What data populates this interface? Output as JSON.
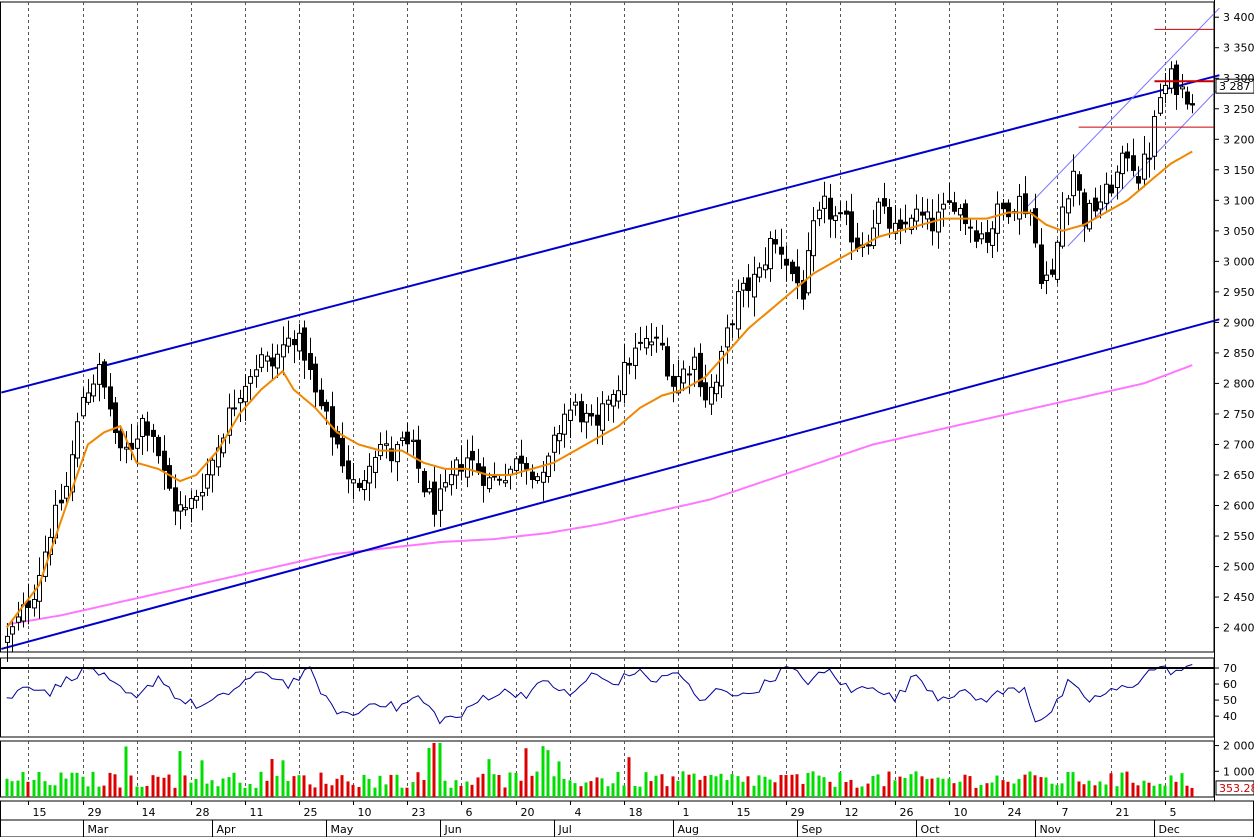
{
  "chart_data": {
    "type": "candlestick",
    "price_axis": {
      "ylim": [
        2360,
        3420
      ],
      "ticks": [
        "3 400",
        "3 350",
        "3 300",
        "3 250",
        "3 200",
        "3 150",
        "3 100",
        "3 050",
        "3 000",
        "2 950",
        "2 900",
        "2 850",
        "2 800",
        "2 750",
        "2 700",
        "2 650",
        "2 600",
        "2 550",
        "2 500",
        "2 450",
        "2 400"
      ],
      "tick_values": [
        3400,
        3350,
        3300,
        3250,
        3200,
        3150,
        3100,
        3050,
        3000,
        2950,
        2900,
        2850,
        2800,
        2750,
        2700,
        2650,
        2600,
        2550,
        2500,
        2450,
        2400
      ],
      "last_price_label": "3 287",
      "last_price": 3287
    },
    "oscillator_axis": {
      "ylim": [
        27,
        75
      ],
      "ticks": [
        "70",
        "60",
        "50",
        "40"
      ],
      "tick_values": [
        70,
        60,
        50,
        40
      ],
      "reference_level": 70
    },
    "volume_axis": {
      "ylim": [
        0,
        2100
      ],
      "ticks": [
        "2 000",
        "1 000"
      ],
      "tick_values": [
        2000,
        1000
      ],
      "last_volume_label": "353.28",
      "last_volume": 353.28
    },
    "x_axis": {
      "n_bars": 224,
      "day_ticks": [
        {
          "label": "15",
          "bar": 4
        },
        {
          "label": "29",
          "bar": 14
        },
        {
          "label": "14",
          "bar": 24
        },
        {
          "label": "28",
          "bar": 34
        },
        {
          "label": "11",
          "bar": 44
        },
        {
          "label": "25",
          "bar": 54
        },
        {
          "label": "10",
          "bar": 64
        },
        {
          "label": "23",
          "bar": 74
        },
        {
          "label": "6",
          "bar": 84
        },
        {
          "label": "20",
          "bar": 94
        },
        {
          "label": "4",
          "bar": 104
        },
        {
          "label": "18",
          "bar": 114
        },
        {
          "label": "1",
          "bar": 124
        },
        {
          "label": "15",
          "bar": 134
        },
        {
          "label": "29",
          "bar": 144
        },
        {
          "label": "12",
          "bar": 154
        },
        {
          "label": "26",
          "bar": 164
        },
        {
          "label": "10",
          "bar": 174
        },
        {
          "label": "24",
          "bar": 184
        },
        {
          "label": "7",
          "bar": 194
        },
        {
          "label": "21",
          "bar": 204
        },
        {
          "label": "5",
          "bar": 214
        }
      ],
      "months": [
        {
          "label": "Mar",
          "bar": 14
        },
        {
          "label": "Apr",
          "bar": 38
        },
        {
          "label": "May",
          "bar": 59
        },
        {
          "label": "Jun",
          "bar": 80
        },
        {
          "label": "Jul",
          "bar": 101
        },
        {
          "label": "Aug",
          "bar": 123
        },
        {
          "label": "Sep",
          "bar": 146
        },
        {
          "label": "Oct",
          "bar": 168
        },
        {
          "label": "Nov",
          "bar": 190
        },
        {
          "label": "Dec",
          "bar": 212
        }
      ]
    },
    "price_keypoints": [
      [
        0,
        2380
      ],
      [
        2,
        2410
      ],
      [
        5,
        2460
      ],
      [
        8,
        2560
      ],
      [
        11,
        2630
      ],
      [
        14,
        2780
      ],
      [
        17,
        2820
      ],
      [
        19,
        2760
      ],
      [
        21,
        2680
      ],
      [
        23,
        2700
      ],
      [
        25,
        2740
      ],
      [
        27,
        2720
      ],
      [
        29,
        2650
      ],
      [
        31,
        2600
      ],
      [
        33,
        2590
      ],
      [
        35,
        2620
      ],
      [
        37,
        2650
      ],
      [
        39,
        2700
      ],
      [
        41,
        2750
      ],
      [
        43,
        2790
      ],
      [
        45,
        2820
      ],
      [
        47,
        2840
      ],
      [
        49,
        2830
      ],
      [
        51,
        2860
      ],
      [
        53,
        2880
      ],
      [
        55,
        2850
      ],
      [
        57,
        2780
      ],
      [
        59,
        2740
      ],
      [
        61,
        2700
      ],
      [
        63,
        2650
      ],
      [
        65,
        2620
      ],
      [
        67,
        2680
      ],
      [
        69,
        2700
      ],
      [
        71,
        2680
      ],
      [
        73,
        2700
      ],
      [
        75,
        2690
      ],
      [
        77,
        2630
      ],
      [
        79,
        2600
      ],
      [
        81,
        2620
      ],
      [
        83,
        2660
      ],
      [
        85,
        2680
      ],
      [
        87,
        2660
      ],
      [
        89,
        2640
      ],
      [
        91,
        2650
      ],
      [
        93,
        2660
      ],
      [
        95,
        2680
      ],
      [
        97,
        2660
      ],
      [
        99,
        2640
      ],
      [
        101,
        2700
      ],
      [
        103,
        2750
      ],
      [
        105,
        2760
      ],
      [
        107,
        2740
      ],
      [
        109,
        2720
      ],
      [
        111,
        2780
      ],
      [
        113,
        2800
      ],
      [
        115,
        2840
      ],
      [
        117,
        2860
      ],
      [
        119,
        2870
      ],
      [
        121,
        2860
      ],
      [
        123,
        2800
      ],
      [
        125,
        2820
      ],
      [
        127,
        2840
      ],
      [
        129,
        2780
      ],
      [
        131,
        2800
      ],
      [
        133,
        2880
      ],
      [
        135,
        2940
      ],
      [
        137,
        2960
      ],
      [
        139,
        2980
      ],
      [
        141,
        3030
      ],
      [
        143,
        3020
      ],
      [
        145,
        2980
      ],
      [
        147,
        2950
      ],
      [
        149,
        3050
      ],
      [
        151,
        3090
      ],
      [
        153,
        3070
      ],
      [
        155,
        3060
      ],
      [
        157,
        3030
      ],
      [
        159,
        3040
      ],
      [
        161,
        3090
      ],
      [
        163,
        3060
      ],
      [
        165,
        3040
      ],
      [
        167,
        3080
      ],
      [
        169,
        3070
      ],
      [
        171,
        3060
      ],
      [
        173,
        3080
      ],
      [
        175,
        3100
      ],
      [
        177,
        3070
      ],
      [
        179,
        3050
      ],
      [
        181,
        3040
      ],
      [
        183,
        3080
      ],
      [
        185,
        3090
      ],
      [
        187,
        3100
      ],
      [
        189,
        3080
      ],
      [
        191,
        2980
      ],
      [
        193,
        2970
      ],
      [
        195,
        3090
      ],
      [
        197,
        3150
      ],
      [
        199,
        3070
      ],
      [
        201,
        3090
      ],
      [
        203,
        3110
      ],
      [
        205,
        3140
      ],
      [
        207,
        3180
      ],
      [
        209,
        3140
      ],
      [
        211,
        3180
      ],
      [
        213,
        3270
      ],
      [
        215,
        3300
      ],
      [
        217,
        3280
      ],
      [
        219,
        3270
      ]
    ],
    "ema_keypoints": [
      [
        0,
        2400
      ],
      [
        6,
        2470
      ],
      [
        11,
        2600
      ],
      [
        15,
        2700
      ],
      [
        18,
        2720
      ],
      [
        21,
        2730
      ],
      [
        24,
        2670
      ],
      [
        28,
        2660
      ],
      [
        32,
        2640
      ],
      [
        35,
        2650
      ],
      [
        39,
        2690
      ],
      [
        43,
        2750
      ],
      [
        47,
        2790
      ],
      [
        51,
        2820
      ],
      [
        53,
        2790
      ],
      [
        57,
        2760
      ],
      [
        61,
        2720
      ],
      [
        65,
        2700
      ],
      [
        69,
        2690
      ],
      [
        73,
        2690
      ],
      [
        77,
        2670
      ],
      [
        81,
        2660
      ],
      [
        85,
        2660
      ],
      [
        89,
        2650
      ],
      [
        93,
        2650
      ],
      [
        97,
        2660
      ],
      [
        101,
        2670
      ],
      [
        105,
        2690
      ],
      [
        109,
        2710
      ],
      [
        113,
        2730
      ],
      [
        117,
        2760
      ],
      [
        121,
        2780
      ],
      [
        125,
        2790
      ],
      [
        129,
        2810
      ],
      [
        133,
        2850
      ],
      [
        137,
        2890
      ],
      [
        141,
        2920
      ],
      [
        145,
        2950
      ],
      [
        149,
        2980
      ],
      [
        153,
        3000
      ],
      [
        157,
        3020
      ],
      [
        161,
        3040
      ],
      [
        165,
        3050
      ],
      [
        169,
        3060
      ],
      [
        173,
        3070
      ],
      [
        177,
        3070
      ],
      [
        181,
        3070
      ],
      [
        185,
        3080
      ],
      [
        189,
        3080
      ],
      [
        192,
        3060
      ],
      [
        195,
        3050
      ],
      [
        199,
        3060
      ],
      [
        203,
        3080
      ],
      [
        207,
        3100
      ],
      [
        211,
        3130
      ],
      [
        215,
        3160
      ],
      [
        219,
        3180
      ]
    ],
    "sma_keypoints": [
      [
        0,
        2405
      ],
      [
        10,
        2420
      ],
      [
        20,
        2440
      ],
      [
        30,
        2460
      ],
      [
        40,
        2480
      ],
      [
        50,
        2500
      ],
      [
        60,
        2520
      ],
      [
        70,
        2530
      ],
      [
        80,
        2540
      ],
      [
        90,
        2545
      ],
      [
        100,
        2555
      ],
      [
        110,
        2570
      ],
      [
        120,
        2590
      ],
      [
        130,
        2610
      ],
      [
        140,
        2640
      ],
      [
        150,
        2670
      ],
      [
        160,
        2700
      ],
      [
        170,
        2720
      ],
      [
        180,
        2740
      ],
      [
        190,
        2760
      ],
      [
        200,
        2780
      ],
      [
        210,
        2800
      ],
      [
        219,
        2830
      ]
    ],
    "oscillator_keypoints": [
      [
        0,
        50
      ],
      [
        4,
        60
      ],
      [
        8,
        55
      ],
      [
        12,
        65
      ],
      [
        16,
        70
      ],
      [
        20,
        58
      ],
      [
        24,
        50
      ],
      [
        28,
        65
      ],
      [
        32,
        50
      ],
      [
        36,
        46
      ],
      [
        40,
        52
      ],
      [
        44,
        62
      ],
      [
        48,
        67
      ],
      [
        52,
        60
      ],
      [
        56,
        68
      ],
      [
        60,
        45
      ],
      [
        64,
        40
      ],
      [
        68,
        50
      ],
      [
        72,
        45
      ],
      [
        76,
        52
      ],
      [
        80,
        38
      ],
      [
        84,
        40
      ],
      [
        88,
        52
      ],
      [
        92,
        55
      ],
      [
        96,
        54
      ],
      [
        100,
        62
      ],
      [
        104,
        52
      ],
      [
        108,
        66
      ],
      [
        112,
        60
      ],
      [
        116,
        68
      ],
      [
        120,
        62
      ],
      [
        124,
        68
      ],
      [
        128,
        48
      ],
      [
        132,
        58
      ],
      [
        136,
        52
      ],
      [
        140,
        60
      ],
      [
        144,
        70
      ],
      [
        148,
        62
      ],
      [
        152,
        68
      ],
      [
        156,
        55
      ],
      [
        160,
        60
      ],
      [
        164,
        50
      ],
      [
        168,
        66
      ],
      [
        172,
        52
      ],
      [
        176,
        55
      ],
      [
        180,
        50
      ],
      [
        184,
        55
      ],
      [
        188,
        58
      ],
      [
        190,
        38
      ],
      [
        193,
        42
      ],
      [
        196,
        60
      ],
      [
        200,
        50
      ],
      [
        204,
        55
      ],
      [
        208,
        60
      ],
      [
        212,
        70
      ],
      [
        216,
        68
      ],
      [
        219,
        70
      ]
    ],
    "channel_main_upper": [
      [
        -1,
        2785
      ],
      [
        224,
        3305
      ]
    ],
    "channel_main_lower": [
      [
        -1,
        2365
      ],
      [
        224,
        2905
      ]
    ],
    "channel_small_upper": [
      [
        188,
        3085
      ],
      [
        224,
        3415
      ]
    ],
    "channel_small_lower": [
      [
        196,
        3025
      ],
      [
        224,
        3285
      ]
    ],
    "horizontal_levels": [
      {
        "value": 3380,
        "from_bar": 212,
        "to_bar": 224,
        "color": "#cc0000",
        "width": 1
      },
      {
        "value": 3295,
        "from_bar": 212,
        "to_bar": 224,
        "color": "#cc0000",
        "width": 2
      },
      {
        "value": 3220,
        "from_bar": 198,
        "to_bar": 224,
        "color": "#cc0000",
        "width": 1
      }
    ],
    "colors": {
      "up_candle": "#ffffff",
      "down_candle": "#000000",
      "channel": "#0000cc",
      "small_channel": "#7777ff",
      "ema": "#ee8800",
      "sma": "#ff77ff",
      "oscillator": "#000099",
      "volume_up": "#00dd00",
      "volume_down": "#dd0000"
    }
  }
}
